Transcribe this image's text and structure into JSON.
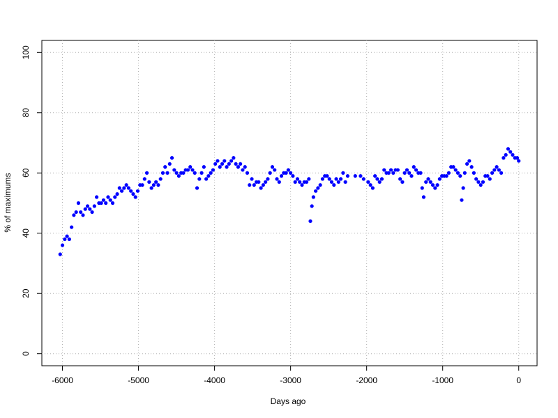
{
  "chart_data": {
    "type": "scatter",
    "x_label": "Days ago",
    "y_label": "% of maximums",
    "xlim": [
      -6271,
      241
    ],
    "ylim": [
      -4,
      104
    ],
    "xticks": [
      -6000,
      -5000,
      -4000,
      -3000,
      -2000,
      -1000,
      0
    ],
    "yticks": [
      0,
      20,
      40,
      60,
      80,
      100
    ],
    "grid": true,
    "series": [
      {
        "color": "#0000ff",
        "x": [
          -6030,
          -6000,
          -5970,
          -5940,
          -5910,
          -5880,
          -5850,
          -5820,
          -5790,
          -5760,
          -5730,
          -5700,
          -5670,
          -5640,
          -5610,
          -5580,
          -5550,
          -5520,
          -5490,
          -5460,
          -5430,
          -5400,
          -5370,
          -5340,
          -5310,
          -5280,
          -5250,
          -5220,
          -5190,
          -5160,
          -5130,
          -5100,
          -5070,
          -5040,
          -5010,
          -4980,
          -4950,
          -4920,
          -4890,
          -4860,
          -4830,
          -4800,
          -4770,
          -4740,
          -4710,
          -4680,
          -4650,
          -4620,
          -4590,
          -4560,
          -4530,
          -4500,
          -4470,
          -4440,
          -4410,
          -4380,
          -4350,
          -4320,
          -4290,
          -4260,
          -4230,
          -4200,
          -4170,
          -4140,
          -4110,
          -4080,
          -4050,
          -4020,
          -3990,
          -3960,
          -3930,
          -3900,
          -3870,
          -3840,
          -3810,
          -3780,
          -3750,
          -3720,
          -3690,
          -3660,
          -3630,
          -3600,
          -3570,
          -3540,
          -3510,
          -3480,
          -3450,
          -3420,
          -3390,
          -3360,
          -3330,
          -3300,
          -3270,
          -3240,
          -3210,
          -3180,
          -3150,
          -3120,
          -3090,
          -3060,
          -3030,
          -3000,
          -2970,
          -2940,
          -2910,
          -2880,
          -2850,
          -2820,
          -2790,
          -2760,
          -2740,
          -2720,
          -2700,
          -2670,
          -2640,
          -2610,
          -2580,
          -2550,
          -2520,
          -2490,
          -2460,
          -2430,
          -2400,
          -2370,
          -2340,
          -2310,
          -2280,
          -2250,
          -2150,
          -2080,
          -2040,
          -1980,
          -1950,
          -1920,
          -1890,
          -1860,
          -1830,
          -1800,
          -1770,
          -1740,
          -1710,
          -1680,
          -1650,
          -1620,
          -1590,
          -1560,
          -1530,
          -1500,
          -1470,
          -1440,
          -1410,
          -1380,
          -1350,
          -1320,
          -1290,
          -1270,
          -1250,
          -1220,
          -1190,
          -1160,
          -1130,
          -1100,
          -1070,
          -1040,
          -1010,
          -980,
          -950,
          -920,
          -890,
          -860,
          -830,
          -800,
          -770,
          -750,
          -730,
          -710,
          -680,
          -650,
          -620,
          -590,
          -560,
          -530,
          -500,
          -470,
          -440,
          -410,
          -380,
          -350,
          -320,
          -290,
          -260,
          -230,
          -200,
          -170,
          -140,
          -110,
          -80,
          -50,
          -20,
          0
        ],
        "values": [
          33,
          36,
          38,
          39,
          38,
          42,
          46,
          47,
          50,
          47,
          46,
          48,
          49,
          48,
          47,
          49,
          52,
          50,
          50,
          51,
          50,
          52,
          51,
          50,
          52,
          53,
          55,
          54,
          55,
          56,
          55,
          54,
          53,
          52,
          54,
          56,
          56,
          58,
          60,
          57,
          55,
          56,
          57,
          56,
          58,
          60,
          62,
          60,
          63,
          65,
          61,
          60,
          59,
          60,
          60,
          61,
          61,
          62,
          61,
          60,
          55,
          58,
          60,
          62,
          58,
          59,
          60,
          61,
          63,
          64,
          62,
          63,
          64,
          62,
          63,
          64,
          65,
          63,
          62,
          63,
          61,
          62,
          60,
          56,
          58,
          56,
          57,
          57,
          55,
          56,
          57,
          58,
          60,
          62,
          61,
          58,
          57,
          59,
          60,
          60,
          61,
          60,
          59,
          57,
          58,
          57,
          56,
          57,
          57,
          58,
          44,
          49,
          52,
          54,
          55,
          56,
          58,
          59,
          59,
          58,
          57,
          56,
          58,
          57,
          58,
          60,
          57,
          59,
          59,
          59,
          58,
          57,
          56,
          55,
          59,
          58,
          57,
          58,
          61,
          60,
          60,
          61,
          60,
          61,
          61,
          58,
          57,
          60,
          61,
          60,
          59,
          62,
          61,
          60,
          60,
          55,
          52,
          57,
          58,
          57,
          56,
          55,
          56,
          58,
          59,
          59,
          59,
          60,
          62,
          62,
          61,
          60,
          59,
          51,
          55,
          60,
          63,
          64,
          62,
          60,
          58,
          57,
          56,
          57,
          59,
          59,
          58,
          60,
          61,
          62,
          61,
          60,
          65,
          66,
          68,
          67,
          66,
          65,
          65,
          64
        ]
      }
    ]
  }
}
